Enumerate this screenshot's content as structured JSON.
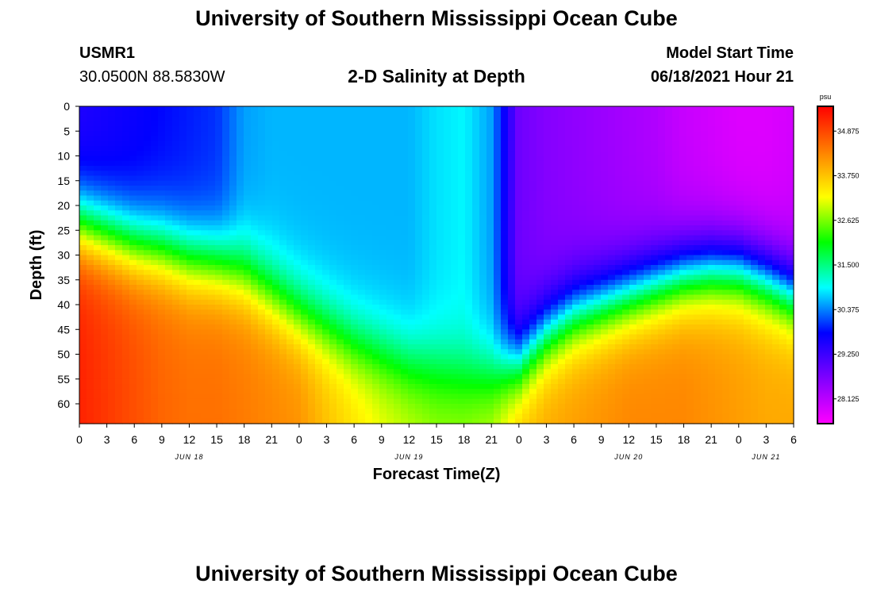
{
  "header": {
    "title": "University of Southern Mississippi Ocean Cube",
    "station": "USMR1",
    "coords": "30.0500N  88.5830W",
    "subtitle": "2-D Salinity at Depth",
    "model_start_label": "Model Start Time",
    "model_start_value": "06/18/2021 Hour 21"
  },
  "footer": {
    "title": "University of Southern Mississippi Ocean Cube"
  },
  "colors": {
    "scale": [
      "#ff00ff",
      "#8000ff",
      "#0000ff",
      "#00ffff",
      "#00ff00",
      "#ffff00",
      "#ff8000",
      "#ff0000"
    ]
  },
  "chart_data": {
    "type": "heatmap",
    "xlabel": "Forecast Time(Z)",
    "ylabel": "Depth (ft)",
    "x_range_hours": [
      0,
      78
    ],
    "x_ticks": [
      "0",
      "3",
      "6",
      "9",
      "12",
      "15",
      "18",
      "21",
      "0",
      "3",
      "6",
      "9",
      "12",
      "15",
      "18",
      "21",
      "0",
      "3",
      "6",
      "9",
      "12",
      "15",
      "18",
      "21",
      "0",
      "3",
      "6"
    ],
    "day_labels": [
      {
        "label": "JUN 18",
        "hour": 12
      },
      {
        "label": "JUN 19",
        "hour": 36
      },
      {
        "label": "JUN 20",
        "hour": 60
      },
      {
        "label": "JUN 21",
        "hour": 75
      }
    ],
    "y_range_ft": [
      0,
      64
    ],
    "y_ticks": [
      0,
      5,
      10,
      15,
      20,
      25,
      30,
      35,
      40,
      45,
      50,
      55,
      60
    ],
    "colorbar": {
      "unit": "psu",
      "min": 27.5,
      "max": 35.5,
      "tick_labels": [
        "28.125",
        "29.250",
        "30.375",
        "31.500",
        "32.625",
        "33.750",
        "34.875"
      ]
    },
    "profiles": {
      "hours": [
        0,
        3,
        6,
        9,
        12,
        15,
        18,
        21,
        24,
        27,
        30,
        33,
        36,
        39,
        42,
        45,
        48,
        51,
        54,
        57,
        60,
        63,
        66,
        69,
        72,
        75,
        78
      ],
      "surface_salinity": [
        29.5,
        29.6,
        29.7,
        29.8,
        29.9,
        30.0,
        30.5,
        30.6,
        30.6,
        30.6,
        30.6,
        30.6,
        30.6,
        30.8,
        30.9,
        30.5,
        28.8,
        28.6,
        28.5,
        28.4,
        28.3,
        28.2,
        28.0,
        27.9,
        27.8,
        27.8,
        27.9
      ],
      "halocline_depth_ft": [
        24,
        26,
        28,
        29,
        31,
        32,
        34,
        38,
        42,
        45,
        48,
        50,
        52,
        53,
        54,
        54,
        52,
        46,
        42,
        40,
        38,
        36,
        34,
        33,
        33,
        35,
        38
      ],
      "bottom_salinity": [
        35.2,
        35.0,
        34.8,
        34.6,
        34.5,
        34.5,
        34.4,
        34.3,
        34.2,
        33.8,
        33.5,
        33.2,
        33.0,
        32.8,
        32.8,
        33.0,
        33.8,
        34.0,
        34.1,
        34.2,
        34.3,
        34.3,
        34.3,
        34.2,
        34.1,
        34.0,
        34.0
      ]
    }
  }
}
